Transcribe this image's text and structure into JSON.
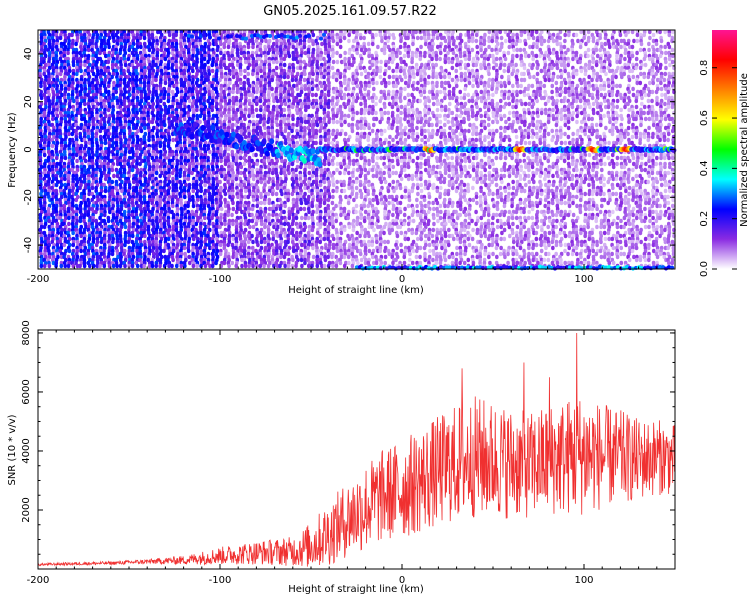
{
  "title": "GN05.2025.161.09.57.R22",
  "chart_data": [
    {
      "type": "heatmap",
      "xlabel": "Height of straight line (km)",
      "ylabel": "Frequency (Hz)",
      "xlim": [
        -200,
        150
      ],
      "ylim": [
        -50,
        50
      ],
      "xticks": [
        "-200",
        "-100",
        "0",
        "100"
      ],
      "xtick_values": [
        -200,
        -100,
        0,
        100
      ],
      "yticks": [
        "-40",
        "-20",
        "0",
        "20",
        "40"
      ],
      "ytick_values": [
        -40,
        -20,
        0,
        20,
        40
      ],
      "colorbar": {
        "label": "Normalized spectral amplitude",
        "range": [
          0,
          0.95
        ],
        "ticks": [
          "0.0",
          "0.2",
          "0.4",
          "0.6",
          "0.8"
        ],
        "tick_values": [
          0.0,
          0.2,
          0.4,
          0.6,
          0.8
        ],
        "colormap": [
          "#ffffff",
          "#8a2be2",
          "#0000ff",
          "#00ffff",
          "#00ff00",
          "#ffff00",
          "#ff8000",
          "#ff0000",
          "#ff1493"
        ]
      },
      "features": {
        "carrier_line_frequency_hz": 0,
        "carrier_line_from_km": -45,
        "strong_peaks_km": [
          15,
          65,
          105,
          123
        ],
        "strong_peak_amplitude": 0.85,
        "drift_from": {
          "km": -125,
          "hz": 10
        },
        "drift_to": {
          "km": -45,
          "hz": -4
        },
        "edge_bands_hz": [
          48,
          -49
        ]
      }
    },
    {
      "type": "line",
      "xlabel": "Height of straight line (km)",
      "ylabel": "SNR (10 * v/v)",
      "xlim": [
        -200,
        150
      ],
      "ylim": [
        0,
        8100
      ],
      "xticks": [
        "-200",
        "-100",
        "0",
        "100"
      ],
      "xtick_values": [
        -200,
        -100,
        0,
        100
      ],
      "yticks": [
        "2000",
        "4000",
        "6000",
        "8000"
      ],
      "ytick_values": [
        2000,
        4000,
        6000,
        8000
      ],
      "color": "#f03030",
      "x": [
        -200,
        -180,
        -160,
        -140,
        -120,
        -100,
        -80,
        -60,
        -50,
        -40,
        -30,
        -20,
        -10,
        0,
        10,
        20,
        30,
        40,
        50,
        60,
        70,
        80,
        90,
        100,
        110,
        120,
        130,
        140,
        150
      ],
      "y": [
        150,
        180,
        200,
        250,
        300,
        450,
        550,
        600,
        800,
        1200,
        1700,
        2100,
        2500,
        2700,
        3000,
        3300,
        3600,
        3800,
        3700,
        3600,
        3500,
        3700,
        3800,
        3900,
        3800,
        3800,
        3700,
        3800,
        3700
      ],
      "noise_amplitude": [
        40,
        50,
        60,
        80,
        150,
        300,
        400,
        500,
        800,
        1100,
        1300,
        1500,
        1600,
        1700,
        1800,
        1900,
        2000,
        2100,
        2000,
        1900,
        1800,
        1900,
        2000,
        2100,
        1800,
        1600,
        1400,
        1300,
        1200
      ],
      "peaks": [
        {
          "x": 33,
          "y": 6800
        },
        {
          "x": 67,
          "y": 7000
        },
        {
          "x": 96,
          "y": 8000
        },
        {
          "x": 81,
          "y": 6500
        }
      ]
    }
  ]
}
